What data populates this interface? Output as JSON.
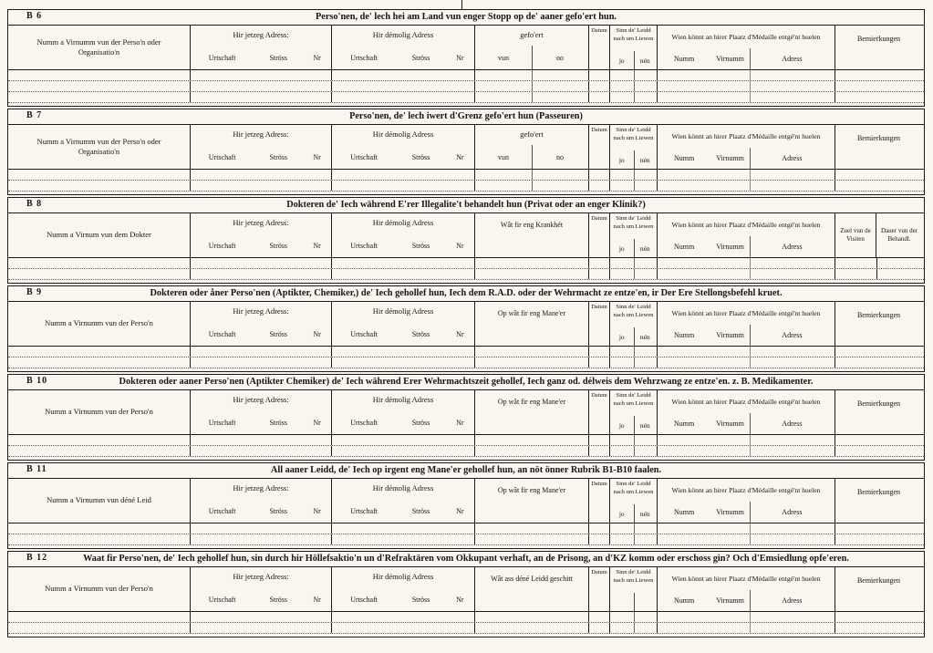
{
  "shared": {
    "jetzeg_adress": "Hir jetzeg Adress:",
    "demolig_adress": "Hir démolig Adress",
    "urtschaft": "Urtschaft",
    "stross": "Ströss",
    "nr": "Nr",
    "gefoert": "gefo'ert",
    "vun": "vun",
    "no": "no",
    "datum": "Datum",
    "sinn_leidd": "Sinn de' Leidd nach um Liewen",
    "jo": "jo",
    "nen": "nén",
    "wien_konnt": "Wien könnt an hirer Plaatz d'Médaille entgé'nt huelen",
    "numm": "Numm",
    "virnumm": "Virnumm",
    "adress": "Adress",
    "bemierkungen": "Bemierkungen"
  },
  "sections": [
    {
      "id": "B 6",
      "title": "Perso'nen, de' lech hei am Land vun enger Stopp op de' aaner gefo'ert hun.",
      "name_col": "Numm a Virnumm vun der Perso'n oder Organisatio'n"
    },
    {
      "id": "B 7",
      "title": "Perso'nen, de' lech iwert d'Grenz gefo'ert hun (Passeuren)",
      "name_col": "Numm a Virnumm vun der Perso'n oder Organisatio'n"
    },
    {
      "id": "B 8",
      "title": "Dokteren de' Iech während E'rer Illegalite't behandelt hun (Privat oder an enger Klinik?)",
      "name_col": "Numm a Virnum vun dem Dokter",
      "manner_col": "Wât fir eng Krankhét",
      "visits_col": "Zuel vun de Visiten",
      "duration_col": "Dauer vun der Behandl."
    },
    {
      "id": "B 9",
      "title": "Dokteren oder åner Perso'nen (Aptikter, Chemiker,) de' Iech gehollef hun, Iech dem R.A.D. oder der Wehrmacht ze entze'en, ir Der Ere Stellongsbefehl kruet.",
      "name_col": "Numm a Virnumm vun der Perso'n",
      "manner_col": "Op wât fir eng Mane'er"
    },
    {
      "id": "B 10",
      "title": "Dokteren oder aaner Perso'nen (Aptikter Chemiker) de' Iech während Erer Wehrmachtszeit gehollef, Iech ganz od. délweis dem Wehrzwang ze entze'en. z. B. Medikamenter.",
      "name_col": "Numm a Virnumm vun der Perso'n",
      "manner_col": "Op wât fir eng Mane'er"
    },
    {
      "id": "B 11",
      "title": "All aaner Leidd, de' Iech op irgent eng Mane'er gehollef hun, an nöt önner Rubrik B1-B10 faalen.",
      "name_col": "Numm a Virnumm vun déné Leid",
      "manner_col": "Op wât fir eng Mane'er"
    },
    {
      "id": "B 12",
      "title": "Waat fir Perso'nen, de' Iech gehollef hun, sin durch hir Höllefsaktio'n un d'Refraktären vom Okkupant verhaft, an de Prisong, an d'KZ komm oder erschoss gin? Och d'Emsiedlung opfe'eren.",
      "name_col": "Numm a Virnumm vun der Perso'n",
      "manner_col": "Wât ass déné Leidd geschitt"
    }
  ]
}
